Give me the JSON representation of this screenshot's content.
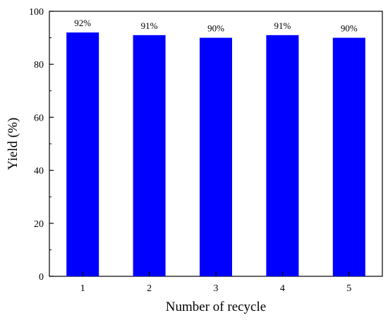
{
  "chart_data": {
    "type": "bar",
    "title": "",
    "xlabel": "Number of recycle",
    "ylabel": "Yield (%)",
    "categories": [
      "1",
      "2",
      "3",
      "4",
      "5"
    ],
    "values": [
      92,
      91,
      90,
      91,
      90
    ],
    "data_labels": [
      "92%",
      "91%",
      "90%",
      "91%",
      "90%"
    ],
    "ylim": [
      0,
      100
    ],
    "yticks": [
      0,
      20,
      40,
      60,
      80,
      100
    ],
    "ytick_labels": [
      "0",
      "20",
      "40",
      "60",
      "80",
      "100"
    ],
    "grid": false,
    "legend": "none",
    "bar_color": "#0000ff"
  }
}
